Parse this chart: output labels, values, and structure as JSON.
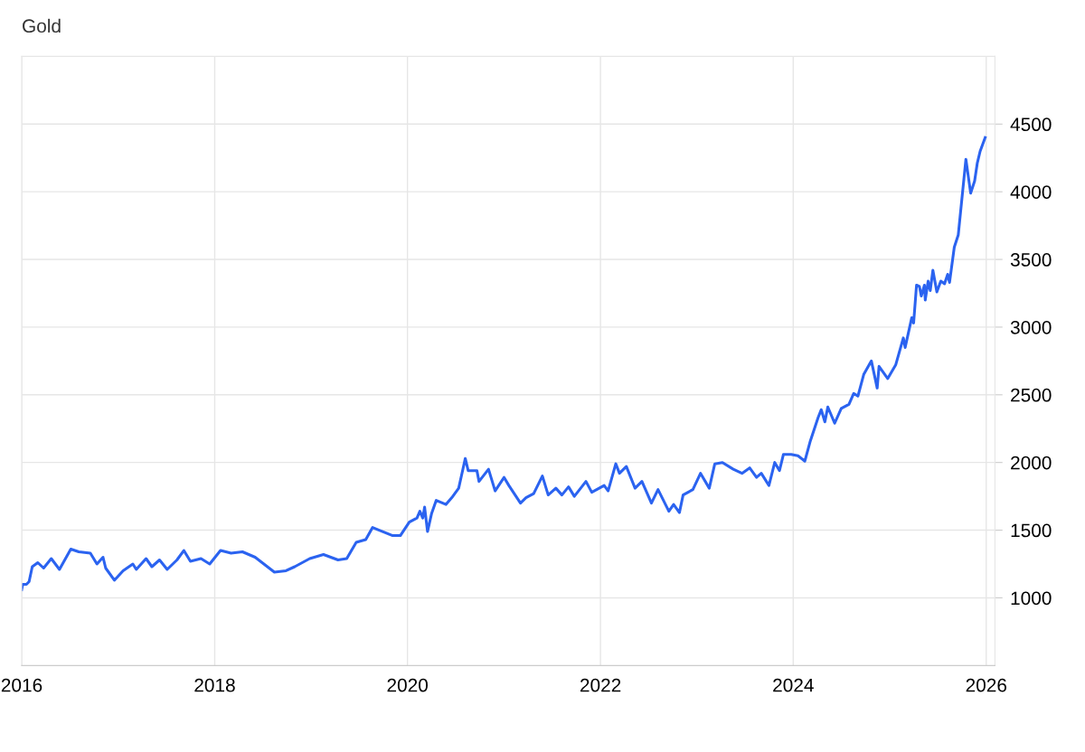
{
  "chart_data": {
    "type": "line",
    "title": "Gold",
    "x": [
      "2016-01-01",
      "2016-01-05",
      "2016-01-19",
      "2016-01-29",
      "2016-02-10",
      "2016-03-02",
      "2016-03-24",
      "2016-04-22",
      "2016-05-23",
      "2016-07-05",
      "2016-08-04",
      "2016-09-17",
      "2016-10-12",
      "2016-11-04",
      "2016-11-14",
      "2016-12-17",
      "2017-01-19",
      "2017-02-25",
      "2017-03-10",
      "2017-04-16",
      "2017-05-08",
      "2017-06-06",
      "2017-07-05",
      "2017-08-11",
      "2017-09-06",
      "2017-10-01",
      "2017-11-10",
      "2017-12-13",
      "2018-01-23",
      "2018-03-04",
      "2018-04-16",
      "2018-06-03",
      "2018-08-15",
      "2018-09-28",
      "2018-10-31",
      "2018-12-27",
      "2019-02-17",
      "2019-04-13",
      "2019-05-16",
      "2019-06-21",
      "2019-07-27",
      "2019-08-22",
      "2019-09-16",
      "2019-11-06",
      "2019-12-05",
      "2020-01-08",
      "2020-02-06",
      "2020-02-17",
      "2020-02-28",
      "2020-03-06",
      "2020-03-17",
      "2020-04-01",
      "2020-04-19",
      "2020-05-26",
      "2020-06-17",
      "2020-07-13",
      "2020-08-07",
      "2020-08-18",
      "2020-09-20",
      "2020-09-28",
      "2020-11-03",
      "2020-11-28",
      "2021-01-01",
      "2021-01-19",
      "2021-03-04",
      "2021-03-25",
      "2021-04-23",
      "2021-05-26",
      "2021-06-17",
      "2021-07-16",
      "2021-08-08",
      "2021-09-02",
      "2021-09-24",
      "2021-11-07",
      "2021-11-29",
      "2022-01-15",
      "2022-01-30",
      "2022-02-28",
      "2022-03-14",
      "2022-04-09",
      "2022-05-12",
      "2022-06-07",
      "2022-07-13",
      "2022-08-07",
      "2022-09-17",
      "2022-10-05",
      "2022-10-27",
      "2022-11-10",
      "2022-12-17",
      "2023-01-15",
      "2023-02-17",
      "2023-03-10",
      "2023-04-08",
      "2023-05-19",
      "2023-06-21",
      "2023-07-20",
      "2023-08-15",
      "2023-09-02",
      "2023-10-01",
      "2023-10-23",
      "2023-11-10",
      "2023-11-25",
      "2023-12-24",
      "2024-01-19",
      "2024-02-14",
      "2024-03-06",
      "2024-04-04",
      "2024-04-16",
      "2024-04-30",
      "2024-05-11",
      "2024-06-06",
      "2024-07-01",
      "2024-07-30",
      "2024-08-17",
      "2024-09-02",
      "2024-09-24",
      "2024-10-23",
      "2024-11-14",
      "2024-11-21",
      "2024-12-24",
      "2025-01-23",
      "2025-02-21",
      "2025-02-28",
      "2025-03-25",
      "2025-04-01",
      "2025-04-12",
      "2025-04-23",
      "2025-04-30",
      "2025-05-12",
      "2025-05-15",
      "2025-05-26",
      "2025-06-03",
      "2025-06-13",
      "2025-06-28",
      "2025-07-13",
      "2025-07-27",
      "2025-08-08",
      "2025-08-15",
      "2025-09-02",
      "2025-09-17",
      "2025-10-16",
      "2025-11-03",
      "2025-11-18",
      "2025-11-28",
      "2025-12-09",
      "2025-12-28"
    ],
    "series": [
      {
        "color": "#2b63f0",
        "values": [
          1060,
          1100,
          1100,
          1120,
          1230,
          1260,
          1220,
          1290,
          1210,
          1360,
          1340,
          1330,
          1250,
          1300,
          1220,
          1130,
          1200,
          1250,
          1210,
          1290,
          1230,
          1280,
          1210,
          1280,
          1350,
          1270,
          1290,
          1250,
          1350,
          1330,
          1340,
          1300,
          1190,
          1200,
          1230,
          1290,
          1320,
          1280,
          1290,
          1410,
          1430,
          1520,
          1500,
          1460,
          1460,
          1560,
          1590,
          1640,
          1590,
          1670,
          1490,
          1620,
          1720,
          1690,
          1740,
          1810,
          2030,
          1940,
          1940,
          1860,
          1950,
          1790,
          1890,
          1830,
          1700,
          1740,
          1770,
          1900,
          1760,
          1810,
          1760,
          1820,
          1750,
          1860,
          1780,
          1830,
          1790,
          1990,
          1920,
          1970,
          1810,
          1860,
          1700,
          1800,
          1640,
          1690,
          1630,
          1760,
          1800,
          1920,
          1810,
          1990,
          2000,
          1950,
          1920,
          1960,
          1890,
          1920,
          1830,
          2000,
          1940,
          2060,
          2060,
          2050,
          2010,
          2160,
          2330,
          2390,
          2300,
          2410,
          2290,
          2400,
          2430,
          2510,
          2490,
          2650,
          2750,
          2550,
          2710,
          2620,
          2720,
          2920,
          2850,
          3070,
          3030,
          3310,
          3300,
          3230,
          3310,
          3200,
          3340,
          3270,
          3420,
          3260,
          3340,
          3320,
          3390,
          3330,
          3590,
          3680,
          4240,
          3990,
          4080,
          4210,
          4300,
          4400
        ]
      }
    ],
    "xlim": [
      "2016-01-01",
      "2026-02-03"
    ],
    "xticks": [
      "2016",
      "2018",
      "2020",
      "2022",
      "2024",
      "2026"
    ],
    "ylim": [
      500,
      5000
    ],
    "yticks": [
      1000,
      1500,
      2000,
      2500,
      3000,
      3500,
      4000,
      4500
    ],
    "grid": true,
    "marker": "none",
    "line_style": "solid"
  }
}
